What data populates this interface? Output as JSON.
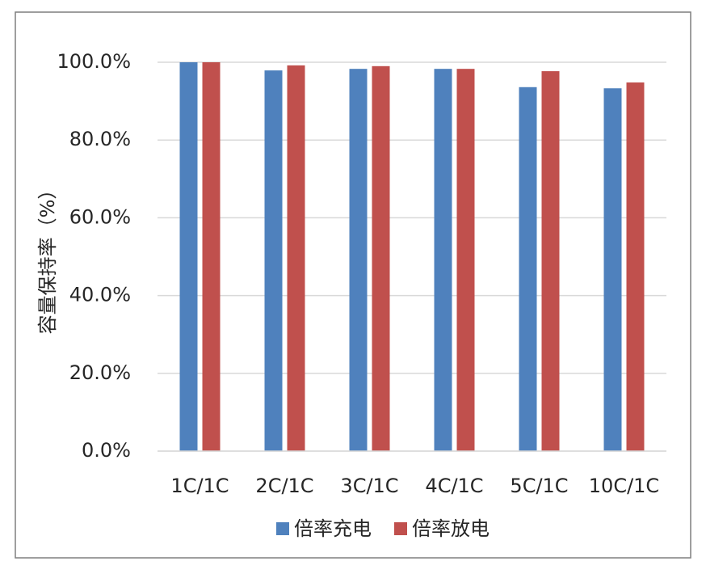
{
  "chart_data": {
    "type": "bar",
    "y_label": "容量保持率（%）",
    "categories": [
      "1C/1C",
      "2C/1C",
      "3C/1C",
      "4C/1C",
      "5C/1C",
      "10C/1C"
    ],
    "series": [
      {
        "name": "倍率充电",
        "color": "#4f81bd",
        "values": [
          100.0,
          97.9,
          98.3,
          98.3,
          93.6,
          93.3
        ]
      },
      {
        "name": "倍率放电",
        "color": "#c0504d",
        "values": [
          100.0,
          99.2,
          99.0,
          98.3,
          97.7,
          94.8
        ]
      }
    ],
    "ylim": [
      0,
      100
    ],
    "yticks": [
      {
        "value": 0,
        "label": "0.0%"
      },
      {
        "value": 20,
        "label": "20.0%"
      },
      {
        "value": 40,
        "label": "40.0%"
      },
      {
        "value": 60,
        "label": "60.0%"
      },
      {
        "value": 80,
        "label": "80.0%"
      },
      {
        "value": 100,
        "label": "100.0%"
      }
    ],
    "grid": true,
    "legend": "bottom"
  }
}
